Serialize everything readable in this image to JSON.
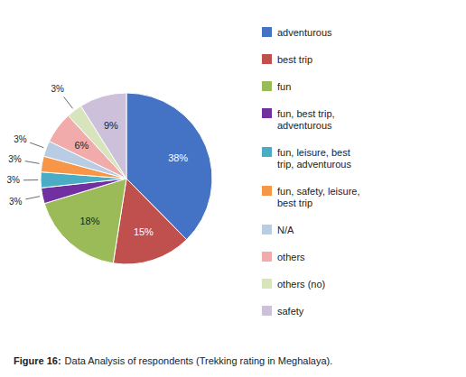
{
  "chart_data": {
    "type": "pie",
    "title": "Figure 16:",
    "subtitle": "Data Analysis of respondents (Trekking rating in Meghalaya).",
    "categories": [
      "adventurous",
      "best trip",
      "fun",
      "fun, best trip,\nadventurous",
      "fun, leisure, best\ntrip, adventurous",
      "fun, safety, leisure,\nbest trip",
      "N/A",
      "others",
      "others (no)",
      "safety"
    ],
    "values": [
      38,
      15,
      18,
      3,
      3,
      3,
      3,
      6,
      3,
      9
    ],
    "value_labels": [
      "38%",
      "15%",
      "18%",
      "3%",
      "3%",
      "3%",
      "3%",
      "6%",
      "3%",
      "9%"
    ],
    "colors": [
      "#4472C4",
      "#C0504D",
      "#9BBB59",
      "#7030A0",
      "#4BACC6",
      "#F79646",
      "#B8CCE4",
      "#F2ABAB",
      "#D7E4BC",
      "#CCC0DA"
    ],
    "data_labels": true,
    "legend": "right"
  }
}
